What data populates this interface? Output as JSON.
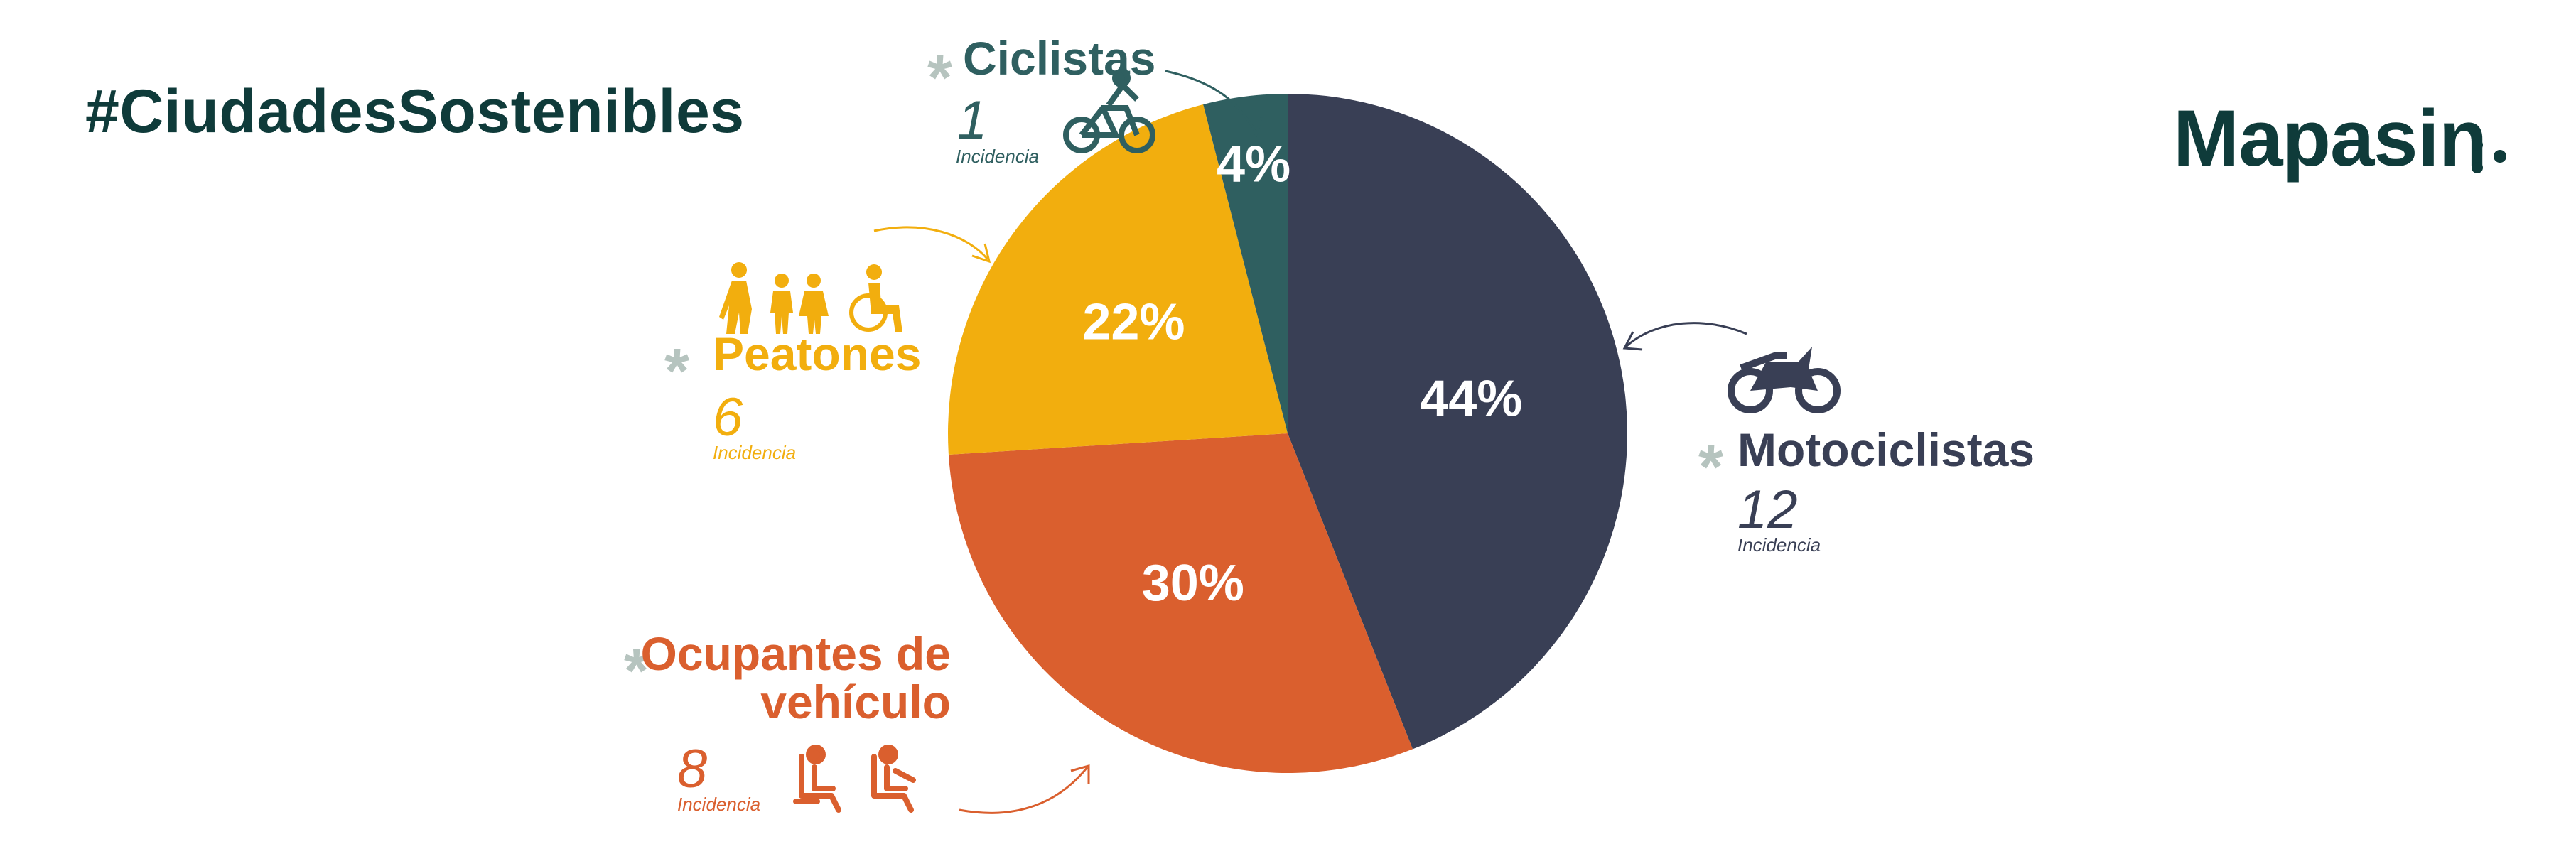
{
  "header": {
    "hashtag": "#CiudadesSostenibles",
    "brand": "Mapasin"
  },
  "colors": {
    "motociclistas": "#393f55",
    "ocupantes": "#da5f2e",
    "peatones": "#f2ae0e",
    "ciclistas": "#2f5f60",
    "brand": "#0f3b3a",
    "star": "#b6c4bf"
  },
  "chart_data": {
    "type": "pie",
    "series": [
      {
        "name": "Motociclistas",
        "value": 44,
        "label": "44%",
        "count": "12",
        "count_label": "Incidencia"
      },
      {
        "name": "Ocupantes de vehículo",
        "value": 30,
        "label": "30%",
        "count": "8",
        "count_label": "Incidencia"
      },
      {
        "name": "Peatones",
        "value": 22,
        "label": "22%",
        "count": "6",
        "count_label": "Incidencia"
      },
      {
        "name": "Ciclistas",
        "value": 4,
        "label": "4%",
        "count": "1",
        "count_label": "Incidencia"
      }
    ]
  },
  "labels": {
    "ciclistas": {
      "name": "Ciclistas",
      "count": "1",
      "sub": "Incidencia",
      "star": "*",
      "icon": "cyclist-icon"
    },
    "peatones": {
      "name": "Peatones",
      "count": "6",
      "sub": "Incidencia",
      "star": "*",
      "icon": "pedestrians-icon"
    },
    "ocupantes": {
      "name_line1": "Ocupantes de",
      "name_line2": "vehículo",
      "count": "8",
      "sub": "Incidencia",
      "star": "*",
      "icon": "car-seat-icon"
    },
    "motociclistas": {
      "name": "Motociclistas",
      "count": "12",
      "sub": "Incidencia",
      "star": "*",
      "icon": "motorcycle-icon"
    }
  }
}
